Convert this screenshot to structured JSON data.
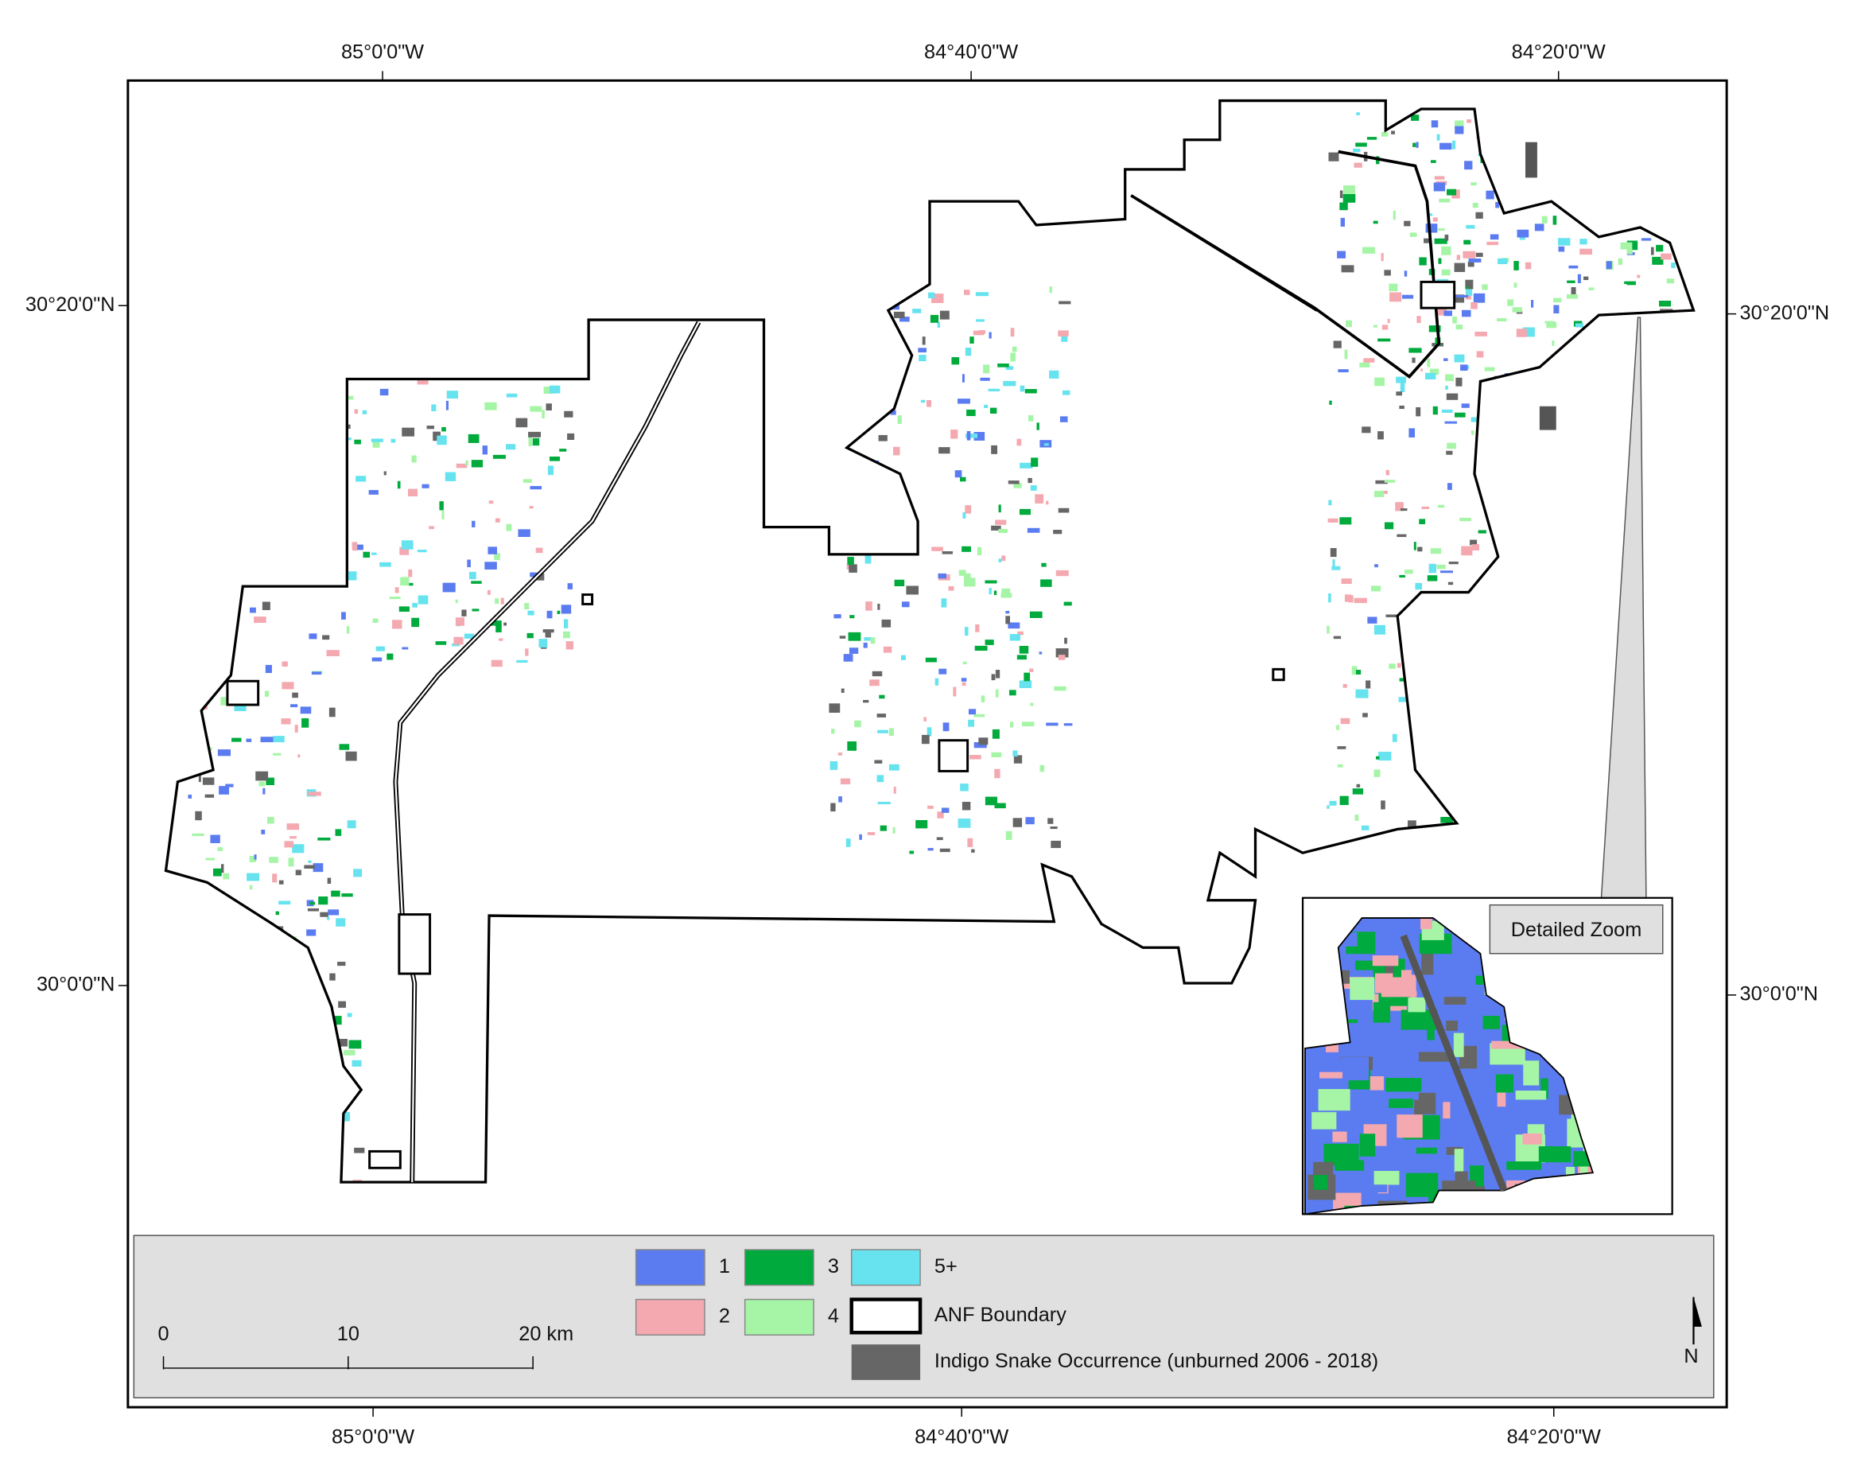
{
  "map": {
    "graticule": {
      "top": [
        "85°0'0\"W",
        "84°40'0\"W",
        "84°20'0\"W"
      ],
      "bottom": [
        "85°0'0\"W",
        "84°40'0\"W",
        "84°20'0\"W"
      ],
      "left": [
        "30°20'0\"N",
        "30°0'0\"N"
      ],
      "right": [
        "30°20'0\"N",
        "30°0'0\"N"
      ]
    },
    "legend": {
      "items": [
        {
          "label": "1",
          "color": "#5b7cf0"
        },
        {
          "label": "2",
          "color": "#f4a9b0"
        },
        {
          "label": "3",
          "color": "#00aa3c"
        },
        {
          "label": "4",
          "color": "#a6f5a6"
        },
        {
          "label": "5+",
          "color": "#66e3ef"
        }
      ],
      "boundary": "ANF Boundary",
      "occurrence": {
        "label": "Indigo Snake Occurrence (unburned 2006 - 2018)",
        "color": "#666666"
      }
    },
    "scale_bar": [
      "0",
      "10",
      "20 km"
    ],
    "inset": {
      "label": "Detailed Zoom"
    },
    "north_arrow": "N"
  }
}
